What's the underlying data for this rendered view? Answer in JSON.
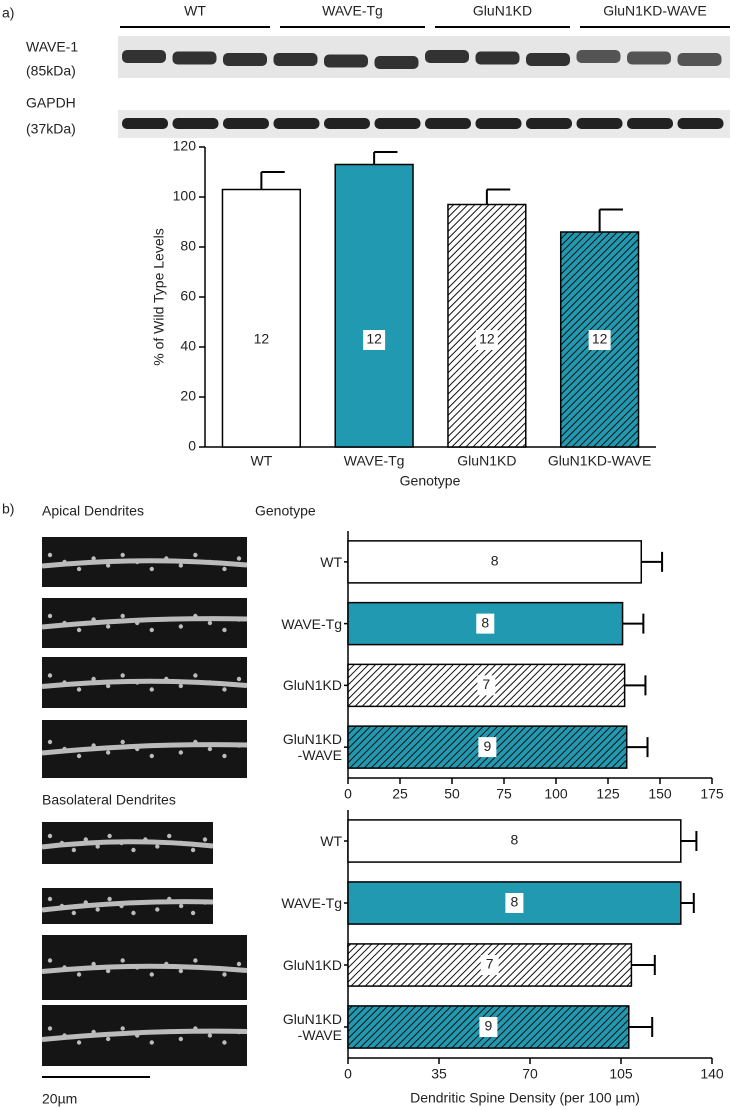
{
  "figure": {
    "panel_a": "a)",
    "panel_b": "b)",
    "blot_groups": [
      "WT",
      "WAVE-Tg",
      "GluN1KD",
      "GluN1KD-WAVE"
    ],
    "blot_labels": [
      "WAVE-1",
      "(85kDa)",
      "GAPDH",
      "(37kDa)"
    ],
    "apical": "Apical Dendrites",
    "basolateral": "Basolateral Dendrites",
    "scale_bar": "20µm",
    "genotype_heading": "Genotype"
  },
  "chart_data": [
    {
      "type": "bar",
      "orientation": "vertical",
      "categories": [
        "WT",
        "WAVE-Tg",
        "GluN1KD",
        "GluN1KD-WAVE"
      ],
      "values": [
        103,
        113,
        97,
        86
      ],
      "errors": [
        7,
        5,
        6,
        9
      ],
      "n_labels": [
        "12",
        "12",
        "12",
        "12"
      ],
      "colors": [
        "#ffffff",
        "#2199b1",
        "#ffffff",
        "#2199b1"
      ],
      "hatch": [
        false,
        false,
        true,
        true
      ],
      "ylim": [
        0,
        120
      ],
      "yticks": [
        0,
        20,
        40,
        60,
        80,
        100,
        120
      ],
      "ylabel": "% of Wild Type Levels",
      "xlabel": "Genotype"
    },
    {
      "type": "bar",
      "orientation": "horizontal",
      "categories": [
        "WT",
        "WAVE-Tg",
        "GluN1KD",
        "GluN1KD\n-WAVE"
      ],
      "values": [
        141,
        132,
        133,
        134
      ],
      "errors": [
        10,
        10,
        10,
        10
      ],
      "n_labels": [
        "8",
        "8",
        "7",
        "9"
      ],
      "colors": [
        "#ffffff",
        "#2199b1",
        "#ffffff",
        "#2199b1"
      ],
      "hatch": [
        false,
        false,
        true,
        true
      ],
      "xlim": [
        0,
        175
      ],
      "xticks": [
        0,
        25,
        50,
        75,
        100,
        125,
        150,
        175
      ]
    },
    {
      "type": "bar",
      "orientation": "horizontal",
      "categories": [
        "WT",
        "WAVE-Tg",
        "GluN1KD",
        "GluN1KD\n-WAVE"
      ],
      "values": [
        128,
        128,
        109,
        108
      ],
      "errors": [
        6,
        5,
        9,
        9
      ],
      "n_labels": [
        "8",
        "8",
        "7",
        "9"
      ],
      "colors": [
        "#ffffff",
        "#2199b1",
        "#ffffff",
        "#2199b1"
      ],
      "hatch": [
        false,
        false,
        true,
        true
      ],
      "xlim": [
        0,
        140
      ],
      "xticks": [
        0,
        35,
        70,
        105,
        140
      ],
      "xlabel": "Dendritic Spine Density (per 100 µm)"
    }
  ]
}
